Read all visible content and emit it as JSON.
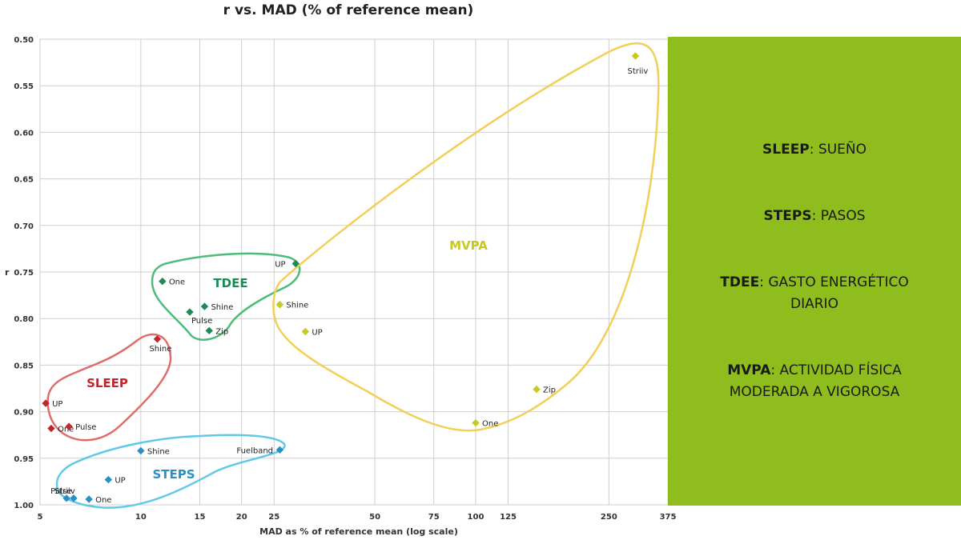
{
  "chart_data": {
    "type": "scatter",
    "title": "r vs. MAD (% of reference mean)",
    "xlabel": "MAD as % of reference mean (log scale)",
    "ylabel": "r",
    "x_scale": "log",
    "xlim": [
      5,
      375
    ],
    "ylim": [
      1.0,
      0.5
    ],
    "y_axis_inverted": true,
    "grid": true,
    "x_ticks": [
      5,
      10,
      15,
      20,
      25,
      50,
      75,
      100,
      125,
      250,
      375
    ],
    "y_ticks": [
      "0.50",
      "0.55",
      "0.60",
      "0.65",
      "0.70",
      "0.75",
      "0.80",
      "0.85",
      "0.90",
      "0.95",
      "1.00"
    ],
    "groups": [
      {
        "label": "SLEEP",
        "color": "#c0262c",
        "outline": "#e06b6b",
        "points": [
          {
            "name": "UP",
            "x": 5.2,
            "y": 0.891
          },
          {
            "name": "One",
            "x": 5.4,
            "y": 0.918
          },
          {
            "name": "Pulse",
            "x": 6.1,
            "y": 0.916
          },
          {
            "name": "Shine",
            "x": 11.2,
            "y": 0.822
          }
        ]
      },
      {
        "label": "TDEE",
        "color": "#1e8a55",
        "outline": "#4dbb79",
        "points": [
          {
            "name": "One",
            "x": 11.6,
            "y": 0.76
          },
          {
            "name": "Shine",
            "x": 15.5,
            "y": 0.787
          },
          {
            "name": "Pulse",
            "x": 14.0,
            "y": 0.793
          },
          {
            "name": "Zip",
            "x": 16.0,
            "y": 0.813
          },
          {
            "name": "UP",
            "x": 29.0,
            "y": 0.741
          }
        ]
      },
      {
        "label": "STEPS",
        "color": "#2b8fc7",
        "outline": "#62c8e8",
        "points": [
          {
            "name": "Shine",
            "x": 10.0,
            "y": 0.942
          },
          {
            "name": "Fuelband",
            "x": 26.0,
            "y": 0.941
          },
          {
            "name": "UP",
            "x": 8.0,
            "y": 0.973
          },
          {
            "name": "Striiv",
            "x": 6.3,
            "y": 0.993
          },
          {
            "name": "Pulse",
            "x": 6.0,
            "y": 0.993
          },
          {
            "name": "One",
            "x": 7.0,
            "y": 0.994
          }
        ]
      },
      {
        "label": "MVPA",
        "color": "#c8c81e",
        "outline": "#f2cf58",
        "points": [
          {
            "name": "Striiv",
            "x": 300,
            "y": 0.518
          },
          {
            "name": "Shine",
            "x": 26.0,
            "y": 0.785
          },
          {
            "name": "UP",
            "x": 31.0,
            "y": 0.814
          },
          {
            "name": "Zip",
            "x": 152,
            "y": 0.876
          },
          {
            "name": "One",
            "x": 100,
            "y": 0.912
          }
        ]
      }
    ]
  },
  "legend": [
    {
      "term": "SLEEP",
      "desc": ": SUEÑO"
    },
    {
      "term": "STEPS",
      "desc": ": PASOS"
    },
    {
      "term": "TDEE",
      "desc": ": GASTO ENERGÉTICO DIARIO"
    },
    {
      "term": "MVPA",
      "desc": ": ACTIVIDAD FÍSICA MODERADA A VIGOROSA"
    }
  ],
  "colors": {
    "panel_background": "#8fbd1d",
    "grid": "#cfcfcf"
  }
}
